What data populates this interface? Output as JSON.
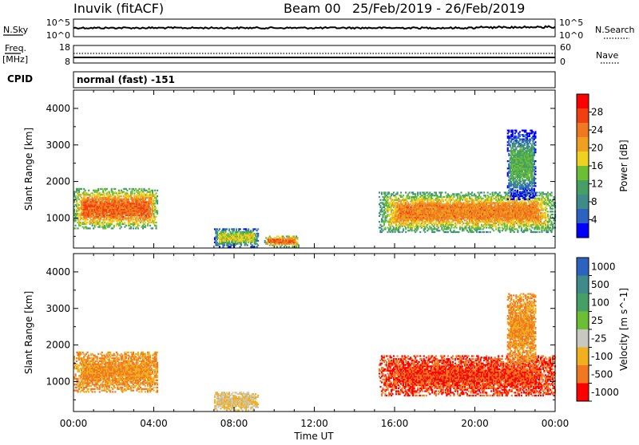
{
  "header": {
    "station": "Inuvik (fitACF)",
    "beam": "Beam 00",
    "date_range": "25/Feb/2019 - 26/Feb/2019"
  },
  "strips": {
    "nsky_label": "N.Sky",
    "nsky_top": "10^5",
    "nsky_bottom": "10^0",
    "nsearch_label": "N.Search",
    "nsearch_top": "10^5",
    "nsearch_bottom": "10^0",
    "freq_label": "Freq.",
    "freq_unit": "[MHz]",
    "freq_top": "18",
    "freq_bottom": "8",
    "nave_label": "Nave",
    "nave_top": "60",
    "nave_bottom": "0",
    "cpid_label": "CPID",
    "cpid_value": "normal (fast) -151"
  },
  "chart_data": [
    {
      "type": "heatmap",
      "panel": "power",
      "ylabel": "Slant Range [km]",
      "xlabel": "",
      "yticks": [
        1000,
        2000,
        3000,
        4000
      ],
      "ylim": [
        180,
        4500
      ],
      "x_ticks": [
        "00:00",
        "04:00",
        "08:00",
        "12:00",
        "16:00",
        "20:00",
        "00:00"
      ],
      "xlim_hours": [
        0,
        24
      ],
      "colorbar": {
        "label": "Power [dB]",
        "ticks": [
          4,
          8,
          12,
          16,
          20,
          24,
          28
        ],
        "range": [
          0,
          32
        ],
        "colors": [
          "#0000ff",
          "#2c63c0",
          "#3f8a8a",
          "#46a065",
          "#6cbf35",
          "#f0d020",
          "#f0a020",
          "#f07820",
          "#f04010",
          "#ff0000"
        ]
      },
      "echo_regions": [
        {
          "t": [
            0.0,
            4.2
          ],
          "range": [
            700,
            1800
          ],
          "power": 28
        },
        {
          "t": [
            7.0,
            9.2
          ],
          "range": [
            200,
            700
          ],
          "power": 20
        },
        {
          "t": [
            9.5,
            11.2
          ],
          "range": [
            200,
            500
          ],
          "power": 28
        },
        {
          "t": [
            15.2,
            24.0
          ],
          "range": [
            600,
            1700
          ],
          "power": 26
        },
        {
          "t": [
            21.6,
            23.0
          ],
          "range": [
            1500,
            3400
          ],
          "power": 16
        }
      ]
    },
    {
      "type": "heatmap",
      "panel": "velocity",
      "ylabel": "Slant Range [km]",
      "xlabel": "Time UT",
      "yticks": [
        1000,
        2000,
        3000,
        4000
      ],
      "ylim": [
        180,
        4500
      ],
      "x_ticks": [
        "00:00",
        "04:00",
        "08:00",
        "12:00",
        "16:00",
        "20:00",
        "00:00"
      ],
      "xlim_hours": [
        0,
        24
      ],
      "colorbar": {
        "label": "Velocity [m s^-1]",
        "ticks": [
          1000,
          500,
          100,
          25,
          -25,
          -100,
          -500,
          -1000
        ],
        "colors": [
          "#2c63c0",
          "#3f8a8a",
          "#46a065",
          "#6cbf35",
          "#c8c8c0",
          "#f0b020",
          "#f07820",
          "#ff0000"
        ]
      },
      "echo_regions": [
        {
          "t": [
            0.0,
            4.2
          ],
          "range": [
            700,
            1800
          ],
          "velocity": -100
        },
        {
          "t": [
            7.0,
            9.2
          ],
          "range": [
            200,
            700
          ],
          "velocity": -25
        },
        {
          "t": [
            15.2,
            24.0
          ],
          "range": [
            600,
            1700
          ],
          "velocity": -500
        },
        {
          "t": [
            21.6,
            23.0
          ],
          "range": [
            1500,
            3400
          ],
          "velocity": -100
        }
      ]
    }
  ]
}
